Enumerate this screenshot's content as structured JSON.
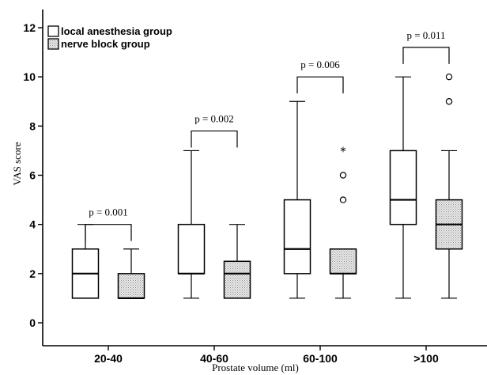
{
  "chart_data": {
    "type": "box",
    "xlabel": "Prostate volume (ml)",
    "ylabel": "VAS score",
    "ylim": [
      0,
      12
    ],
    "yticks": [
      0,
      2,
      4,
      6,
      8,
      10,
      12
    ],
    "categories": [
      "20-40",
      "40-60",
      "60-100",
      ">100"
    ],
    "legend": {
      "position": "top-left"
    },
    "series": [
      {
        "name": "local anesthesia group",
        "fill": "#ffffff",
        "boxes": [
          {
            "min": 1,
            "q1": 1,
            "median": 2,
            "q3": 3,
            "max": 4,
            "outliers": []
          },
          {
            "min": 1,
            "q1": 2,
            "median": 2,
            "q3": 4,
            "max": 7,
            "outliers": []
          },
          {
            "min": 1,
            "q1": 2,
            "median": 3,
            "q3": 5,
            "max": 9,
            "outliers": []
          },
          {
            "min": 1,
            "q1": 4,
            "median": 5,
            "q3": 7,
            "max": 10,
            "outliers": []
          }
        ]
      },
      {
        "name": "nerve block group",
        "fill": "#d9d9d9",
        "pattern": "dotted",
        "boxes": [
          {
            "min": 1,
            "q1": 1,
            "median": 1,
            "q3": 2,
            "max": 3,
            "outliers": []
          },
          {
            "min": 1,
            "q1": 1,
            "median": 2,
            "q3": 2.5,
            "max": 4,
            "outliers": []
          },
          {
            "min": 1,
            "q1": 2,
            "median": 2,
            "q3": 3,
            "max": 3,
            "outliers": [
              {
                "value": 5,
                "marker": "circle"
              },
              {
                "value": 6,
                "marker": "circle"
              },
              {
                "value": 7,
                "marker": "star"
              }
            ]
          },
          {
            "min": 1,
            "q1": 3,
            "median": 4,
            "q3": 5,
            "max": 7,
            "outliers": [
              {
                "value": 9,
                "marker": "circle"
              },
              {
                "value": 10,
                "marker": "circle"
              }
            ]
          }
        ]
      }
    ],
    "annotations": [
      {
        "category": "20-40",
        "text": "p = 0.001",
        "y": 4.0
      },
      {
        "category": "40-60",
        "text": "p = 0.002",
        "y": 7.8
      },
      {
        "category": "60-100",
        "text": "p = 0.006",
        "y": 10.0
      },
      {
        "category": ">100",
        "text": "p = 0.011",
        "y": 11.2
      }
    ]
  }
}
